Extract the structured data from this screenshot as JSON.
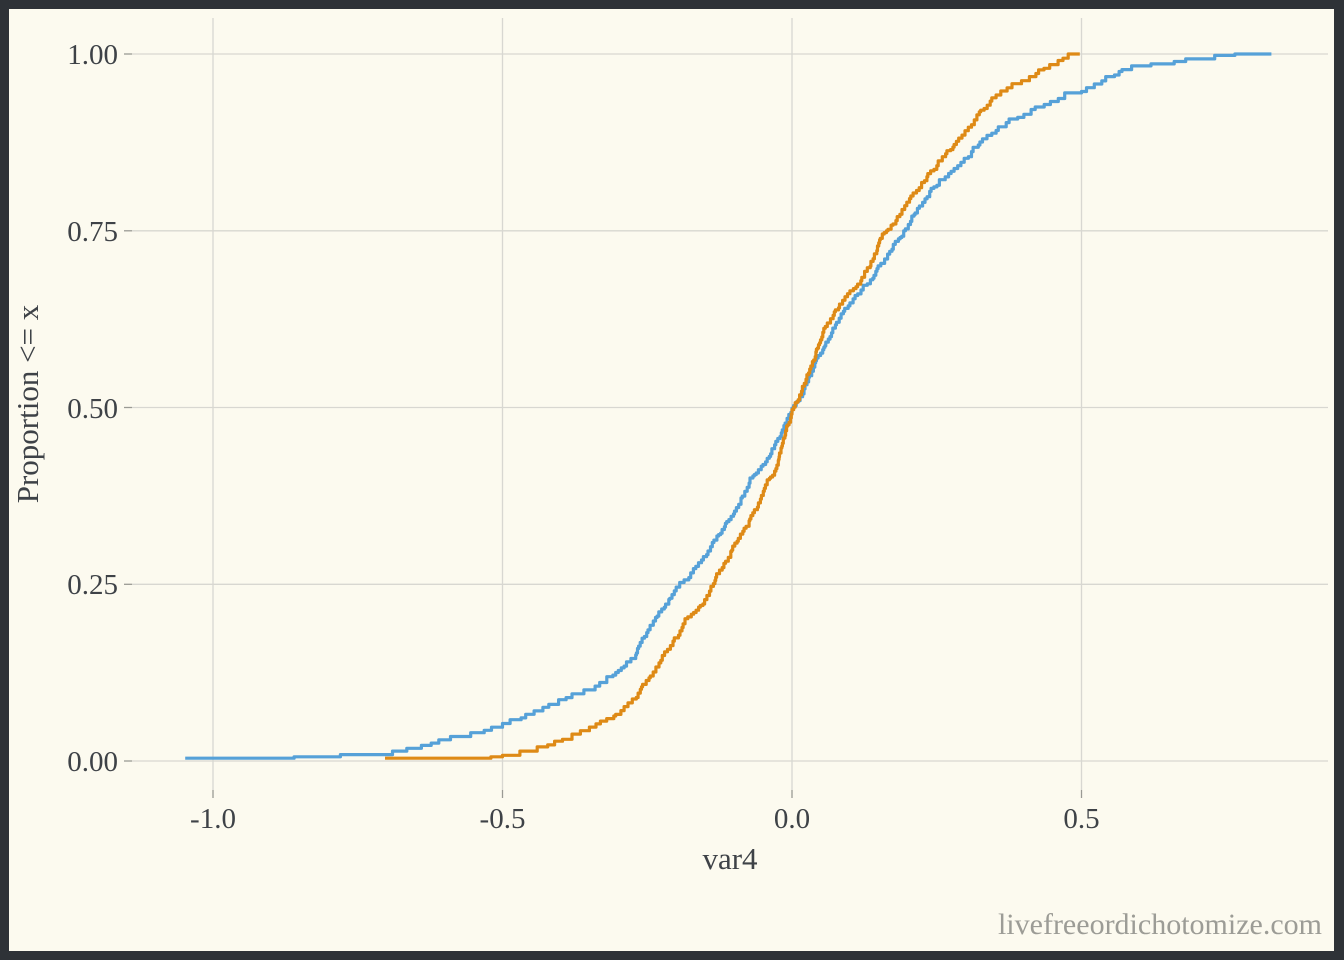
{
  "watermark": "livefreeordichotomize.com",
  "colors": {
    "background": "#FCFAEF",
    "frame_border": "#2E3237",
    "gridline": "#D8D7D1",
    "tick": "#9A9A94",
    "axis_text": "#3E4247",
    "watermark_text": "#9C9C96",
    "series_blue": "#56A1D8",
    "series_orange": "#DE8A16"
  },
  "chart_data": {
    "type": "line",
    "subtype": "ecdf-step",
    "title": "",
    "xlabel": "var4",
    "ylabel": "Proportion <= x",
    "grid": true,
    "legend": false,
    "xlim": [
      -1.143,
      0.926
    ],
    "ylim": [
      -0.04,
      1.05
    ],
    "x_ticks": [
      -1.0,
      -0.5,
      0.0,
      0.5
    ],
    "x_tick_labels": [
      "-1.0",
      "-0.5",
      "0.0",
      "0.5"
    ],
    "y_ticks": [
      0.0,
      0.25,
      0.5,
      0.75,
      1.0
    ],
    "y_tick_labels": [
      "0.00",
      "0.25",
      "0.50",
      "0.75",
      "1.00"
    ],
    "series": [
      {
        "name": "blue",
        "color": "#56A1D8",
        "points": [
          [
            -1.048,
            0.004
          ],
          [
            -0.95,
            0.004
          ],
          [
            -0.86,
            0.006
          ],
          [
            -0.78,
            0.009
          ],
          [
            -0.69,
            0.014
          ],
          [
            -0.64,
            0.022
          ],
          [
            -0.61,
            0.03
          ],
          [
            -0.555,
            0.04
          ],
          [
            -0.5,
            0.053
          ],
          [
            -0.46,
            0.066
          ],
          [
            -0.42,
            0.08
          ],
          [
            -0.38,
            0.095
          ],
          [
            -0.34,
            0.106
          ],
          [
            -0.3,
            0.128
          ],
          [
            -0.27,
            0.15
          ],
          [
            -0.245,
            0.192
          ],
          [
            -0.225,
            0.215
          ],
          [
            -0.2,
            0.246
          ],
          [
            -0.175,
            0.266
          ],
          [
            -0.145,
            0.297
          ],
          [
            -0.115,
            0.336
          ],
          [
            -0.088,
            0.372
          ],
          [
            -0.058,
            0.412
          ],
          [
            -0.028,
            0.452
          ],
          [
            0.0,
            0.499
          ],
          [
            0.03,
            0.545
          ],
          [
            0.055,
            0.585
          ],
          [
            0.075,
            0.617
          ],
          [
            0.1,
            0.648
          ],
          [
            0.13,
            0.675
          ],
          [
            0.16,
            0.71
          ],
          [
            0.193,
            0.75
          ],
          [
            0.22,
            0.785
          ],
          [
            0.245,
            0.812
          ],
          [
            0.28,
            0.838
          ],
          [
            0.31,
            0.862
          ],
          [
            0.345,
            0.888
          ],
          [
            0.375,
            0.908
          ],
          [
            0.42,
            0.925
          ],
          [
            0.46,
            0.937
          ],
          [
            0.5,
            0.947
          ],
          [
            0.535,
            0.962
          ],
          [
            0.57,
            0.978
          ],
          [
            0.62,
            0.986
          ],
          [
            0.68,
            0.993
          ],
          [
            0.73,
            0.998
          ],
          [
            0.765,
            1.0
          ],
          [
            0.828,
            1.0
          ]
        ]
      },
      {
        "name": "orange",
        "color": "#DE8A16",
        "points": [
          [
            -0.703,
            0.004
          ],
          [
            -0.6,
            0.004
          ],
          [
            -0.52,
            0.006
          ],
          [
            -0.5,
            0.008
          ],
          [
            -0.47,
            0.014
          ],
          [
            -0.44,
            0.02
          ],
          [
            -0.41,
            0.028
          ],
          [
            -0.38,
            0.038
          ],
          [
            -0.35,
            0.048
          ],
          [
            -0.32,
            0.06
          ],
          [
            -0.29,
            0.077
          ],
          [
            -0.26,
            0.105
          ],
          [
            -0.235,
            0.133
          ],
          [
            -0.215,
            0.158
          ],
          [
            -0.196,
            0.178
          ],
          [
            -0.17,
            0.21
          ],
          [
            -0.14,
            0.247
          ],
          [
            -0.11,
            0.288
          ],
          [
            -0.085,
            0.325
          ],
          [
            -0.058,
            0.365
          ],
          [
            -0.03,
            0.41
          ],
          [
            -0.015,
            0.455
          ],
          [
            0.0,
            0.497
          ],
          [
            0.018,
            0.53
          ],
          [
            0.04,
            0.572
          ],
          [
            0.055,
            0.612
          ],
          [
            0.075,
            0.638
          ],
          [
            0.1,
            0.665
          ],
          [
            0.135,
            0.7
          ],
          [
            0.163,
            0.75
          ],
          [
            0.19,
            0.78
          ],
          [
            0.215,
            0.807
          ],
          [
            0.25,
            0.842
          ],
          [
            0.28,
            0.872
          ],
          [
            0.31,
            0.9
          ],
          [
            0.345,
            0.938
          ],
          [
            0.38,
            0.958
          ],
          [
            0.41,
            0.968
          ],
          [
            0.445,
            0.985
          ],
          [
            0.468,
            0.994
          ],
          [
            0.477,
            1.0
          ],
          [
            0.497,
            1.0
          ]
        ]
      }
    ]
  }
}
